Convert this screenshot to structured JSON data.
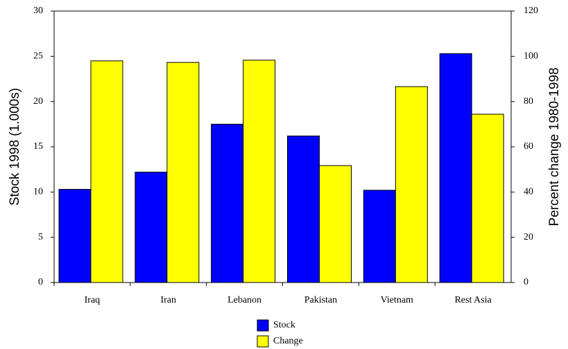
{
  "chart_data": {
    "type": "bar",
    "categories": [
      "Iraq",
      "Iran",
      "Lebanon",
      "Pakistan",
      "Vietnam",
      "Rest Asia"
    ],
    "series": [
      {
        "name": "Stock",
        "color": "#0000ff",
        "values": [
          10.3,
          12.2,
          17.5,
          16.2,
          10.2,
          25.3
        ]
      },
      {
        "name": "Change",
        "color": "#ffff00",
        "values": [
          98,
          97.3,
          98.3,
          51.7,
          86.6,
          74.4
        ],
        "axis": "y2"
      }
    ],
    "y_label": "Stock 1998 (1.000s)",
    "y2_label": "Percent change 1980-1998",
    "ylim": [
      0,
      30
    ],
    "yticks": [
      0,
      5,
      10,
      15,
      20,
      25,
      30
    ],
    "y2lim": [
      0,
      120
    ],
    "y2ticks": [
      0,
      20,
      40,
      60,
      80,
      100,
      120
    ],
    "grid": false,
    "legend": "bottom"
  }
}
